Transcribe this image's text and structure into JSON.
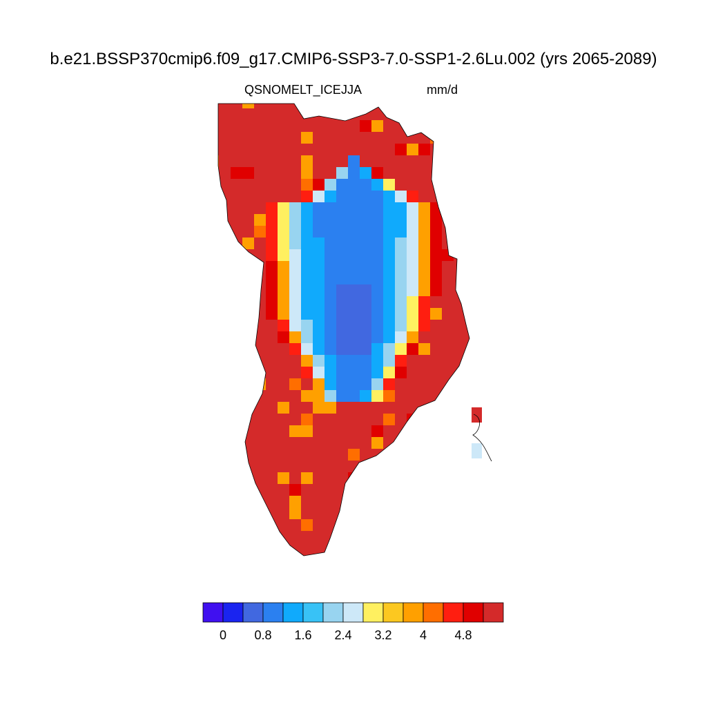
{
  "title": "b.e21.BSSP370cmip6.f09_g17.CMIP6-SSP3-7.0-SSP1-2.6Lu.002 (yrs 2065-2089)",
  "variable": "QSNOMELT_ICE",
  "season": "JJA",
  "units": "mm/d",
  "colorbar": {
    "colors": [
      "#4010f0",
      "#1a24f0",
      "#4168e0",
      "#2b80f0",
      "#10aafc",
      "#38c2f6",
      "#98d4f0",
      "#cde8f8",
      "#fff060",
      "#fcc820",
      "#ffa000",
      "#ff6e00",
      "#ff1e10",
      "#e00000",
      "#d42a2a"
    ],
    "tick_labels": [
      "0",
      "0.8",
      "1.6",
      "2.4",
      "3.2",
      "4",
      "4.8"
    ]
  },
  "map": {
    "region": "Greenland",
    "field_levels": "0 to >4.8 mm/d",
    "dominant_class": "> 4.8 mm/d (coastal margins)",
    "interior_class": "0.8–2.4 mm/d (central ice sheet)"
  }
}
